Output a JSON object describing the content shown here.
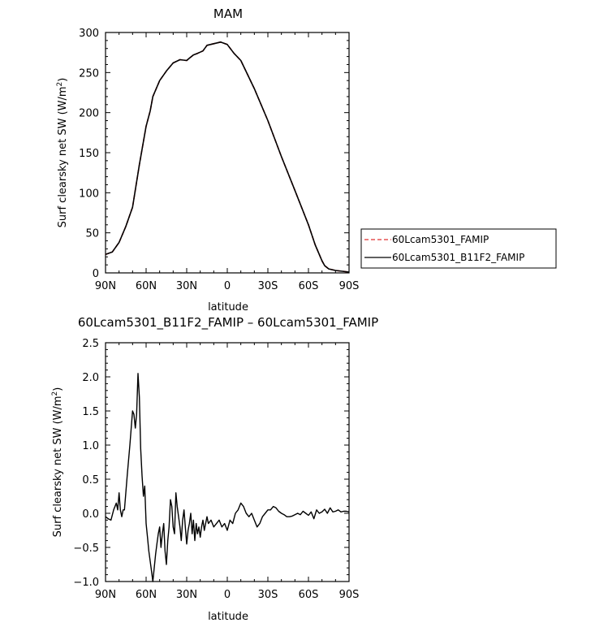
{
  "chart_data": [
    {
      "type": "line",
      "title": "MAM",
      "xlabel": "latitude",
      "ylabel": "Surf clearsky net SW (W/m²)",
      "ylabel_main": "Surf clearsky net SW (W/m",
      "ylabel_sup": "2",
      "ylabel_tail": ")",
      "xlim": [
        "90N",
        "90S"
      ],
      "ylim": [
        0,
        300
      ],
      "x_ticks": [
        "90N",
        "60N",
        "30N",
        "0",
        "30S",
        "60S",
        "90S"
      ],
      "y_ticks": [
        "0",
        "50",
        "100",
        "150",
        "200",
        "250",
        "300"
      ],
      "legend": {
        "placement": "right",
        "entries": [
          "60Lcam5301_FAMIP",
          "60Lcam5301_B11F2_FAMIP"
        ]
      },
      "series": [
        {
          "name": "60Lcam5301_FAMIP",
          "color": "#e03030",
          "dash": "dashed",
          "x": [
            -90,
            -85,
            -80,
            -75,
            -70,
            -65,
            -60,
            -57,
            -55,
            -50,
            -45,
            -40,
            -35,
            -30,
            -28,
            -25,
            -22,
            -18,
            -15,
            -10,
            -5,
            0,
            5,
            10,
            20,
            30,
            40,
            50,
            60,
            65,
            70,
            72,
            75,
            80,
            85,
            90
          ],
          "y": [
            23,
            26,
            38,
            58,
            82,
            135,
            183,
            202,
            220,
            240,
            252,
            262,
            266,
            265,
            268,
            272,
            274,
            277,
            284,
            286,
            288,
            285,
            274,
            265,
            230,
            190,
            145,
            103,
            60,
            35,
            15,
            9,
            5,
            3,
            2,
            1
          ]
        },
        {
          "name": "60Lcam5301_B11F2_FAMIP",
          "color": "#000000",
          "dash": "solid",
          "x": [
            -90,
            -85,
            -80,
            -75,
            -70,
            -65,
            -60,
            -57,
            -55,
            -50,
            -45,
            -40,
            -35,
            -30,
            -28,
            -25,
            -22,
            -18,
            -15,
            -10,
            -5,
            0,
            5,
            10,
            20,
            30,
            40,
            50,
            60,
            65,
            70,
            72,
            75,
            80,
            85,
            90
          ],
          "y": [
            23,
            26,
            38,
            58,
            82,
            135,
            183,
            202,
            220,
            240,
            252,
            262,
            266,
            265,
            268,
            272,
            274,
            277,
            284,
            286,
            288,
            285,
            274,
            265,
            230,
            190,
            145,
            103,
            60,
            35,
            15,
            9,
            5,
            3,
            2,
            1
          ]
        }
      ]
    },
    {
      "type": "line",
      "title": "60Lcam5301_B11F2_FAMIP – 60Lcam5301_FAMIP",
      "xlabel": "latitude",
      "ylabel": "Surf clearsky net SW (W/m²)",
      "ylabel_main": "Surf clearsky net SW (W/m",
      "ylabel_sup": "2",
      "ylabel_tail": ")",
      "xlim": [
        "90N",
        "90S"
      ],
      "ylim": [
        -1.0,
        2.5
      ],
      "x_ticks": [
        "90N",
        "60N",
        "30N",
        "0",
        "30S",
        "60S",
        "90S"
      ],
      "y_ticks": [
        "−1.0",
        "−0.5",
        "0.0",
        "0.5",
        "1.0",
        "1.5",
        "2.0",
        "2.5"
      ],
      "series": [
        {
          "color": "#000000",
          "dash": "solid",
          "x": [
            -90,
            -88,
            -86,
            -84,
            -82,
            -81,
            -80,
            -79,
            -78,
            -77,
            -76,
            -74,
            -72,
            -70,
            -69,
            -68,
            -67,
            -66,
            -65,
            -64,
            -63,
            -62,
            -61,
            -60,
            -59,
            -58,
            -57,
            -56,
            -55,
            -54,
            -53,
            -52,
            -51,
            -50,
            -49,
            -48,
            -47,
            -46,
            -45,
            -44,
            -43,
            -42,
            -41,
            -40,
            -39,
            -38,
            -37,
            -36,
            -35,
            -34,
            -33,
            -32,
            -31,
            -30,
            -29,
            -28,
            -27,
            -26,
            -25,
            -24,
            -23,
            -22,
            -21,
            -20,
            -19,
            -18,
            -17,
            -16,
            -15,
            -14,
            -12,
            -10,
            -8,
            -6,
            -4,
            -2,
            0,
            2,
            4,
            6,
            8,
            10,
            12,
            14,
            16,
            18,
            20,
            22,
            24,
            26,
            28,
            30,
            32,
            34,
            36,
            38,
            40,
            42,
            44,
            46,
            48,
            50,
            52,
            54,
            56,
            58,
            60,
            62,
            64,
            66,
            68,
            70,
            72,
            74,
            76,
            78,
            80,
            82,
            84,
            86,
            88,
            90
          ],
          "y": [
            -0.05,
            -0.08,
            -0.1,
            0.05,
            0.15,
            0.05,
            0.3,
            0.05,
            -0.05,
            0.05,
            0.05,
            0.55,
            1.0,
            1.5,
            1.45,
            1.25,
            1.45,
            2.05,
            1.7,
            0.95,
            0.55,
            0.25,
            0.4,
            -0.15,
            -0.35,
            -0.55,
            -0.7,
            -0.85,
            -1.0,
            -0.8,
            -0.6,
            -0.45,
            -0.3,
            -0.2,
            -0.5,
            -0.3,
            -0.15,
            -0.55,
            -0.75,
            -0.4,
            -0.2,
            0.2,
            0.1,
            -0.2,
            -0.3,
            0.3,
            0.1,
            -0.05,
            -0.2,
            -0.4,
            -0.1,
            0.05,
            -0.2,
            -0.45,
            -0.25,
            -0.15,
            0.0,
            -0.3,
            -0.1,
            -0.4,
            -0.15,
            -0.3,
            -0.2,
            -0.35,
            -0.2,
            -0.1,
            -0.25,
            -0.15,
            -0.05,
            -0.15,
            -0.1,
            -0.2,
            -0.15,
            -0.1,
            -0.2,
            -0.15,
            -0.25,
            -0.1,
            -0.15,
            0.0,
            0.05,
            0.15,
            0.1,
            0.0,
            -0.05,
            0.0,
            -0.1,
            -0.2,
            -0.15,
            -0.05,
            0.0,
            0.05,
            0.05,
            0.1,
            0.08,
            0.03,
            0.0,
            -0.02,
            -0.05,
            -0.05,
            -0.04,
            -0.02,
            0.0,
            -0.02,
            0.03,
            0.0,
            -0.03,
            0.02,
            -0.08,
            0.05,
            0.0,
            0.02,
            0.06,
            0.0,
            0.08,
            0.02,
            0.03,
            0.05,
            0.02,
            0.03,
            0.03,
            0.02
          ]
        }
      ]
    }
  ]
}
